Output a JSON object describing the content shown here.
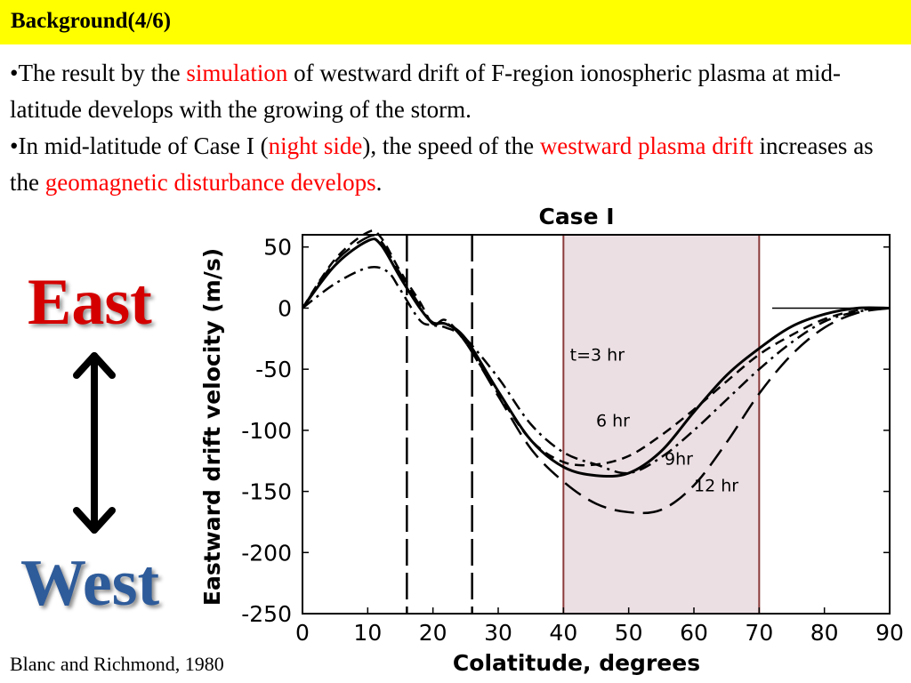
{
  "slide": {
    "title": "Background(4/6)",
    "bullets": [
      {
        "segments": [
          {
            "text": "•The result by the ",
            "red": false
          },
          {
            "text": "simulation",
            "red": true
          },
          {
            "text": " of westward drift of F-region ionospheric plasma at mid-latitude develops with the growing of the storm.",
            "red": false
          }
        ]
      },
      {
        "segments": [
          {
            "text": "•In mid-latitude of Case I (",
            "red": false
          },
          {
            "text": "night side",
            "red": true
          },
          {
            "text": "), the speed of the ",
            "red": false
          },
          {
            "text": "westward plasma drift",
            "red": true
          },
          {
            "text": " increases as the ",
            "red": false
          },
          {
            "text": "geomagnetic disturbance develops",
            "red": true
          },
          {
            "text": ".",
            "red": false
          }
        ]
      }
    ],
    "east_label": "East",
    "west_label": "West",
    "citation": "Blanc and Richmond, 1980",
    "colors": {
      "title_bar": "#ffff00",
      "highlight_red": "#ff0000",
      "east": "#d40000",
      "west": "#2e5b9a",
      "shaded_region": "#ecdfe3",
      "shaded_border": "#8b3a3a"
    }
  },
  "chart_data": {
    "type": "line",
    "title": "Case I",
    "xlabel": "Colatitude, degrees",
    "ylabel": "Eastward drift velocity  (m/s)",
    "xlim": [
      0,
      90
    ],
    "ylim": [
      -250,
      60
    ],
    "xticks": [
      0,
      10,
      20,
      30,
      40,
      50,
      60,
      70,
      80,
      90
    ],
    "yticks": [
      50,
      0,
      -50,
      -100,
      -150,
      -200,
      -250
    ],
    "grid": false,
    "shaded_region": [
      40,
      70
    ],
    "vertical_lines": [
      16,
      26
    ],
    "series": [
      {
        "name": "t=3 hr",
        "style": "dash-dot",
        "x": [
          0,
          5,
          10,
          13,
          15,
          18,
          20,
          22,
          25,
          30,
          35,
          40,
          45,
          50,
          55,
          60,
          65,
          70,
          75,
          80,
          85,
          90
        ],
        "y": [
          0,
          20,
          33,
          30,
          15,
          -10,
          -14,
          -16,
          -25,
          -57,
          -95,
          -118,
          -128,
          -135,
          -122,
          -100,
          -75,
          -50,
          -28,
          -11,
          -3,
          0
        ]
      },
      {
        "name": "6 hr",
        "style": "short-dash",
        "x": [
          0,
          5,
          10,
          12,
          15,
          18,
          20,
          22,
          25,
          30,
          35,
          40,
          45,
          50,
          55,
          60,
          65,
          70,
          75,
          80,
          85,
          90
        ],
        "y": [
          0,
          40,
          62,
          58,
          30,
          5,
          -13,
          -10,
          -28,
          -70,
          -108,
          -126,
          -128,
          -121,
          -104,
          -83,
          -60,
          -38,
          -22,
          -9,
          -2,
          0
        ]
      },
      {
        "name": "9 hr",
        "style": "solid",
        "x": [
          0,
          5,
          10,
          12,
          15,
          18,
          20,
          22,
          25,
          30,
          35,
          40,
          45,
          50,
          55,
          60,
          65,
          70,
          75,
          80,
          85,
          90
        ],
        "y": [
          0,
          35,
          55,
          52,
          25,
          0,
          -12,
          -13,
          -25,
          -68,
          -108,
          -130,
          -137,
          -135,
          -117,
          -85,
          -55,
          -33,
          -15,
          -5,
          0,
          0
        ]
      },
      {
        "name": "12 hr",
        "style": "long-dash",
        "x": [
          0,
          5,
          10,
          12,
          15,
          18,
          20,
          22,
          25,
          30,
          35,
          40,
          45,
          50,
          55,
          60,
          65,
          70,
          75,
          80,
          85,
          90
        ],
        "y": [
          0,
          38,
          58,
          55,
          28,
          2,
          -13,
          -12,
          -28,
          -72,
          -115,
          -142,
          -160,
          -167,
          -165,
          -145,
          -110,
          -70,
          -38,
          -16,
          -4,
          0
        ]
      }
    ],
    "annotations": [
      {
        "text": "t=3 hr",
        "x": 41,
        "y": -43
      },
      {
        "text": "6 hr",
        "x": 45,
        "y": -97
      },
      {
        "text": "9hr",
        "x": 55.5,
        "y": -128
      },
      {
        "text": "12 hr",
        "x": 60,
        "y": -150
      }
    ]
  }
}
